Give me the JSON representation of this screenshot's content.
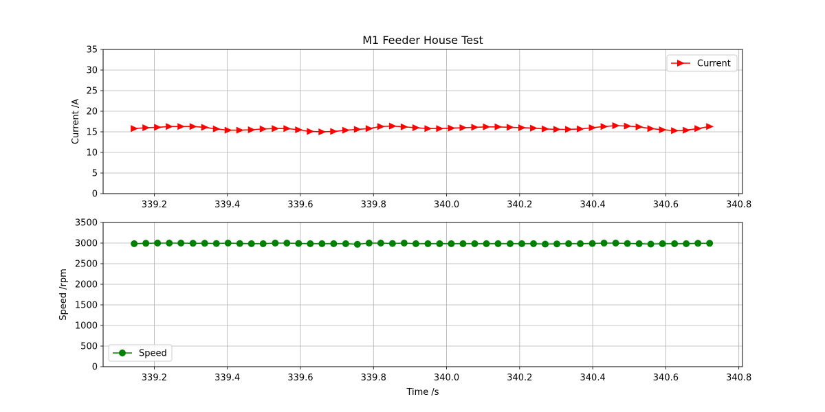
{
  "chart_data": [
    {
      "type": "line",
      "title": "M1 Feeder House Test",
      "xlabel": "",
      "ylabel": "Current /A",
      "xlim": [
        339.06,
        340.81
      ],
      "ylim": [
        0,
        35
      ],
      "xticks": [
        "339.2",
        "339.4",
        "339.6",
        "339.8",
        "340.0",
        "340.2",
        "340.4",
        "340.6",
        "340.8"
      ],
      "yticks": [
        "0",
        "5",
        "10",
        "15",
        "20",
        "25",
        "30",
        "35"
      ],
      "grid": true,
      "legend": "top-right",
      "series": [
        {
          "name": "Current",
          "color": "#ff0000",
          "marker": "triangle-right",
          "x": [
            339.145,
            339.177,
            339.209,
            339.241,
            339.273,
            339.306,
            339.338,
            339.37,
            339.402,
            339.434,
            339.466,
            339.498,
            339.531,
            339.563,
            339.595,
            339.627,
            339.659,
            339.691,
            339.724,
            339.756,
            339.788,
            339.82,
            339.852,
            339.884,
            339.916,
            339.949,
            339.981,
            340.013,
            340.045,
            340.077,
            340.109,
            340.141,
            340.174,
            340.206,
            340.238,
            340.27,
            340.302,
            340.334,
            340.366,
            340.399,
            340.431,
            340.463,
            340.495,
            340.527,
            340.559,
            340.591,
            340.624,
            340.656,
            340.688,
            340.72
          ],
          "values": [
            15.8,
            16.0,
            16.1,
            16.3,
            16.3,
            16.3,
            16.1,
            15.7,
            15.4,
            15.4,
            15.5,
            15.7,
            15.8,
            15.8,
            15.5,
            15.1,
            15.0,
            15.1,
            15.4,
            15.6,
            15.8,
            16.3,
            16.4,
            16.2,
            16.0,
            15.8,
            15.8,
            15.9,
            16.0,
            16.1,
            16.2,
            16.2,
            16.1,
            16.0,
            15.9,
            15.7,
            15.6,
            15.6,
            15.7,
            16.0,
            16.3,
            16.5,
            16.4,
            16.2,
            15.8,
            15.5,
            15.3,
            15.4,
            15.8,
            16.3
          ]
        }
      ]
    },
    {
      "type": "line",
      "title": "",
      "xlabel": "Time /s",
      "ylabel": "Speed /rpm",
      "xlim": [
        339.06,
        340.81
      ],
      "ylim": [
        0,
        3500
      ],
      "xticks": [
        "339.2",
        "339.4",
        "339.6",
        "339.8",
        "340.0",
        "340.2",
        "340.4",
        "340.6",
        "340.8"
      ],
      "yticks": [
        "0",
        "500",
        "1000",
        "1500",
        "2000",
        "2500",
        "3000",
        "3500"
      ],
      "grid": true,
      "legend": "bottom-left",
      "series": [
        {
          "name": "Speed",
          "color": "#008000",
          "marker": "circle",
          "x": [
            339.145,
            339.177,
            339.209,
            339.241,
            339.273,
            339.306,
            339.338,
            339.37,
            339.402,
            339.434,
            339.466,
            339.498,
            339.531,
            339.563,
            339.595,
            339.627,
            339.659,
            339.691,
            339.724,
            339.756,
            339.788,
            339.82,
            339.852,
            339.884,
            339.916,
            339.949,
            339.981,
            340.013,
            340.045,
            340.077,
            340.109,
            340.141,
            340.174,
            340.206,
            340.238,
            340.27,
            340.302,
            340.334,
            340.366,
            340.399,
            340.431,
            340.463,
            340.495,
            340.527,
            340.559,
            340.591,
            340.624,
            340.656,
            340.688,
            340.72
          ],
          "values": [
            2985,
            2995,
            3000,
            3000,
            3000,
            2995,
            2995,
            2990,
            3000,
            2990,
            2985,
            2985,
            3000,
            3000,
            2990,
            2985,
            2985,
            2985,
            2985,
            2970,
            3000,
            3000,
            2990,
            3000,
            2985,
            2985,
            2985,
            2985,
            2985,
            2985,
            2985,
            2985,
            2985,
            2985,
            2985,
            2975,
            2980,
            2985,
            2985,
            2990,
            3000,
            3000,
            2990,
            2985,
            2975,
            2985,
            2985,
            2985,
            2995,
            2995
          ]
        }
      ]
    }
  ]
}
